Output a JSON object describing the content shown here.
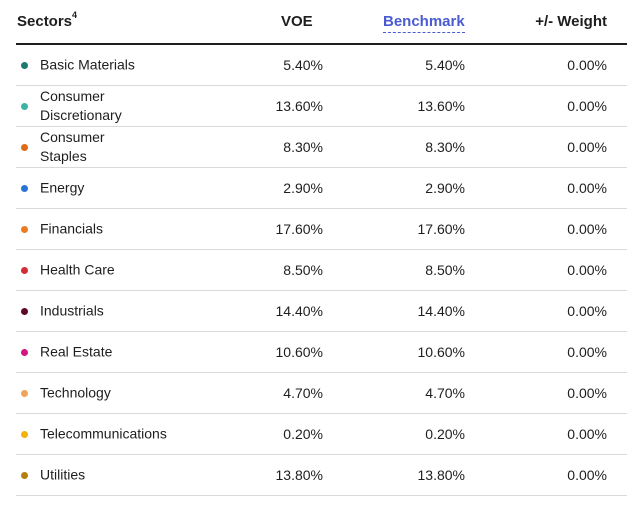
{
  "headers": {
    "sectors": "Sectors",
    "sectors_sup": "4",
    "voe": "VOE",
    "benchmark": "Benchmark",
    "weight": "+/- Weight"
  },
  "rows": [
    {
      "label": "Basic Materials",
      "voe": "5.40%",
      "benchmark": "5.40%",
      "weight": "0.00%",
      "color": "#1d7a72"
    },
    {
      "label": "Consumer Discretionary",
      "voe": "13.60%",
      "benchmark": "13.60%",
      "weight": "0.00%",
      "color": "#3bb3a6"
    },
    {
      "label": "Consumer Staples",
      "voe": "8.30%",
      "benchmark": "8.30%",
      "weight": "0.00%",
      "color": "#e16b14"
    },
    {
      "label": "Energy",
      "voe": "2.90%",
      "benchmark": "2.90%",
      "weight": "0.00%",
      "color": "#2a73d9"
    },
    {
      "label": "Financials",
      "voe": "17.60%",
      "benchmark": "17.60%",
      "weight": "0.00%",
      "color": "#ee7a1f"
    },
    {
      "label": "Health Care",
      "voe": "8.50%",
      "benchmark": "8.50%",
      "weight": "0.00%",
      "color": "#d42b34"
    },
    {
      "label": "Industrials",
      "voe": "14.40%",
      "benchmark": "14.40%",
      "weight": "0.00%",
      "color": "#5e0a24"
    },
    {
      "label": "Real Estate",
      "voe": "10.60%",
      "benchmark": "10.60%",
      "weight": "0.00%",
      "color": "#cf1681"
    },
    {
      "label": "Technology",
      "voe": "4.70%",
      "benchmark": "4.70%",
      "weight": "0.00%",
      "color": "#f0a35b"
    },
    {
      "label": "Telecommunications",
      "voe": "0.20%",
      "benchmark": "0.20%",
      "weight": "0.00%",
      "color": "#f3b10d"
    },
    {
      "label": "Utilities",
      "voe": "13.80%",
      "benchmark": "13.80%",
      "weight": "0.00%",
      "color": "#b87d0f"
    }
  ]
}
